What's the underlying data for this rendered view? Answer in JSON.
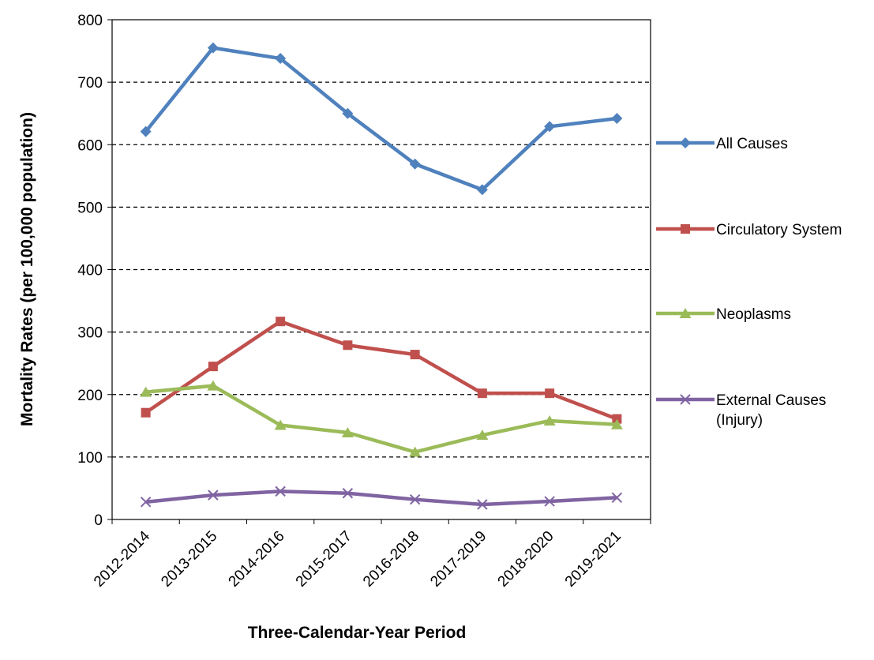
{
  "chart_data": {
    "type": "line",
    "title": "",
    "xlabel": "Three-Calendar-Year Period",
    "ylabel": "Mortality Rates (per 100,000 population)",
    "categories": [
      "2012-2014",
      "2013-2015",
      "2014-2016",
      "2015-2017",
      "2016-2018",
      "2017-2019",
      "2018-2020",
      "2019-2021"
    ],
    "ylim": [
      0,
      800
    ],
    "yticks": [
      0,
      100,
      200,
      300,
      400,
      500,
      600,
      700,
      800
    ],
    "grid": "horizontal dashed",
    "legend_position": "right",
    "series": [
      {
        "name": "All Causes",
        "color": "#4F81BD",
        "marker": "diamond",
        "values": [
          621,
          755,
          738,
          650,
          569,
          528,
          629,
          642
        ]
      },
      {
        "name": "Circulatory System",
        "color": "#C0504D",
        "marker": "square",
        "values": [
          171,
          245,
          317,
          279,
          264,
          202,
          202,
          161
        ]
      },
      {
        "name": "Neoplasms",
        "color": "#9BBB59",
        "marker": "triangle",
        "values": [
          204,
          214,
          151,
          139,
          108,
          135,
          158,
          152
        ]
      },
      {
        "name": "External Causes (Injury)",
        "name_lines": [
          "External Causes",
          "(Injury)"
        ],
        "color": "#8064A2",
        "marker": "x",
        "values": [
          28,
          39,
          45,
          42,
          32,
          24,
          29,
          35
        ]
      }
    ]
  }
}
